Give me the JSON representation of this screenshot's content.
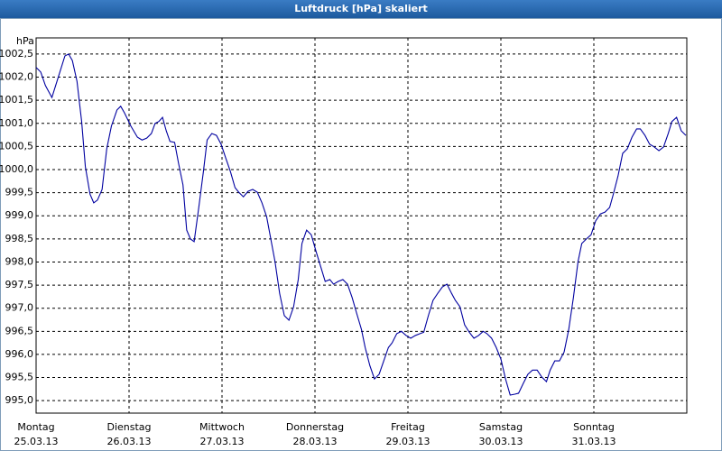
{
  "chart_data": {
    "type": "line",
    "title": "Luftdruck [hPa] skaliert",
    "y_label": "hPa",
    "xlim": [
      0,
      7.0
    ],
    "ylim": [
      994.73,
      1002.85
    ],
    "grid": true,
    "xticks": [
      {
        "value": 0,
        "label": "Montag",
        "date": "25.03.13"
      },
      {
        "value": 1,
        "label": "Dienstag",
        "date": "26.03.13"
      },
      {
        "value": 2,
        "label": "Mittwoch",
        "date": "27.03.13"
      },
      {
        "value": 3,
        "label": "Donnerstag",
        "date": "28.03.13"
      },
      {
        "value": 4,
        "label": "Freitag",
        "date": "29.03.13"
      },
      {
        "value": 5,
        "label": "Samstag",
        "date": "30.03.13"
      },
      {
        "value": 6,
        "label": "Sonntag",
        "date": "31.03.13"
      }
    ],
    "yticks": [
      {
        "value": 995.0,
        "label": "995,0"
      },
      {
        "value": 995.5,
        "label": "995,5"
      },
      {
        "value": 996.0,
        "label": "996,0"
      },
      {
        "value": 996.5,
        "label": "996,5"
      },
      {
        "value": 997.0,
        "label": "997,0"
      },
      {
        "value": 997.5,
        "label": "997,5"
      },
      {
        "value": 998.0,
        "label": "998,0"
      },
      {
        "value": 998.5,
        "label": "998,5"
      },
      {
        "value": 999.0,
        "label": "999,0"
      },
      {
        "value": 999.5,
        "label": "999,5"
      },
      {
        "value": 1000.0,
        "label": "1000,0"
      },
      {
        "value": 1000.5,
        "label": "1000,5"
      },
      {
        "value": 1001.0,
        "label": "1001,0"
      },
      {
        "value": 1001.5,
        "label": "1001,5"
      },
      {
        "value": 1002.0,
        "label": "1002,0"
      },
      {
        "value": 1002.5,
        "label": "1002,5"
      }
    ],
    "x": [
      0,
      0.05,
      0.1,
      0.17,
      0.24,
      0.31,
      0.35,
      0.39,
      0.44,
      0.49,
      0.53,
      0.58,
      0.62,
      0.66,
      0.71,
      0.76,
      0.81,
      0.87,
      0.91,
      0.95,
      1.02,
      1.09,
      1.14,
      1.19,
      1.24,
      1.28,
      1.32,
      1.36,
      1.4,
      1.44,
      1.49,
      1.53,
      1.58,
      1.62,
      1.66,
      1.7,
      1.75,
      1.8,
      1.84,
      1.89,
      1.94,
      1.99,
      2.04,
      2.09,
      2.14,
      2.18,
      2.23,
      2.28,
      2.33,
      2.38,
      2.43,
      2.48,
      2.52,
      2.57,
      2.62,
      2.67,
      2.72,
      2.77,
      2.82,
      2.86,
      2.91,
      2.96,
      3.01,
      3.06,
      3.11,
      3.16,
      3.2,
      3.25,
      3.3,
      3.35,
      3.4,
      3.45,
      3.5,
      3.54,
      3.59,
      3.64,
      3.69,
      3.74,
      3.79,
      3.83,
      3.88,
      3.93,
      3.98,
      4.03,
      4.08,
      4.13,
      4.17,
      4.22,
      4.27,
      4.32,
      4.37,
      4.42,
      4.47,
      4.51,
      4.56,
      4.61,
      4.66,
      4.71,
      4.76,
      4.81,
      4.85,
      4.9,
      4.95,
      5.0,
      5.05,
      5.1,
      5.15,
      5.19,
      5.24,
      5.29,
      5.34,
      5.39,
      5.44,
      5.49,
      5.53,
      5.58,
      5.63,
      5.68,
      5.73,
      5.78,
      5.83,
      5.87,
      5.92,
      5.97,
      6.02,
      6.07,
      6.12,
      6.17,
      6.21,
      6.26,
      6.31,
      6.36,
      6.41,
      6.46,
      6.5,
      6.55,
      6.6,
      6.65,
      6.7,
      6.75,
      6.8,
      6.84,
      6.89,
      6.94,
      6.99
    ],
    "series": [
      {
        "color": "#0000a0",
        "values": [
          1002.21,
          1002.11,
          1001.82,
          1001.56,
          1002.01,
          1002.46,
          1002.5,
          1002.36,
          1001.91,
          1001.04,
          1000.06,
          999.47,
          999.28,
          999.34,
          999.57,
          1000.45,
          1000.94,
          1001.29,
          1001.37,
          1001.23,
          1000.94,
          1000.7,
          1000.64,
          1000.68,
          1000.78,
          1001.0,
          1001.04,
          1001.13,
          1000.84,
          1000.61,
          1000.59,
          1000.16,
          999.67,
          998.69,
          998.5,
          998.44,
          999.18,
          999.96,
          1000.64,
          1000.78,
          1000.74,
          1000.55,
          1000.25,
          999.96,
          999.61,
          999.51,
          999.41,
          999.53,
          999.57,
          999.51,
          999.28,
          998.98,
          998.55,
          998.01,
          997.32,
          996.84,
          996.74,
          997.03,
          997.62,
          998.4,
          998.69,
          998.59,
          998.24,
          997.91,
          997.58,
          997.62,
          997.52,
          997.58,
          997.62,
          997.52,
          997.23,
          996.88,
          996.54,
          996.15,
          995.76,
          995.47,
          995.57,
          995.86,
          996.15,
          996.25,
          996.45,
          996.5,
          996.41,
          996.35,
          996.41,
          996.45,
          996.48,
          996.84,
          997.17,
          997.32,
          997.46,
          997.52,
          997.32,
          997.17,
          997.03,
          996.64,
          996.48,
          996.35,
          996.41,
          996.5,
          996.45,
          996.35,
          996.15,
          995.9,
          995.47,
          995.12,
          995.14,
          995.16,
          995.37,
          995.57,
          995.66,
          995.66,
          995.51,
          995.41,
          995.66,
          995.86,
          995.86,
          996.05,
          996.54,
          997.23,
          998.01,
          998.4,
          998.5,
          998.59,
          998.89,
          999.04,
          999.08,
          999.18,
          999.47,
          999.86,
          1000.35,
          1000.45,
          1000.7,
          1000.88,
          1000.88,
          1000.74,
          1000.55,
          1000.49,
          1000.41,
          1000.49,
          1000.78,
          1001.04,
          1001.13,
          1000.84,
          1000.74
        ]
      }
    ]
  }
}
